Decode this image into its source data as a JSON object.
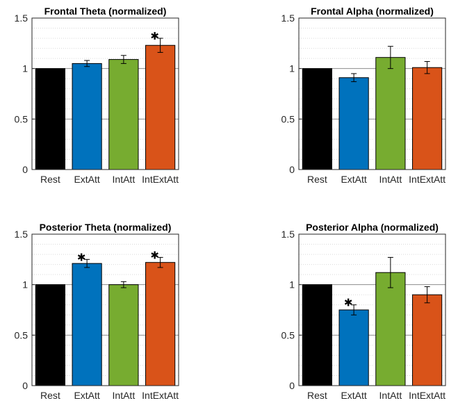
{
  "colors": {
    "axis": "#262626",
    "major_grid": "#8c8c8c",
    "minor_grid": "#d9d9d9"
  },
  "chart_data": [
    {
      "type": "bar",
      "title": "Frontal Theta (normalized)",
      "categories": [
        "Rest",
        "ExtAtt",
        "IntAtt",
        "IntExtAtt"
      ],
      "values": [
        1.0,
        1.05,
        1.09,
        1.23
      ],
      "errors": [
        0.0,
        0.03,
        0.04,
        0.07
      ],
      "significant": [
        false,
        false,
        false,
        true
      ],
      "colors": [
        "#000000",
        "#0072bd",
        "#77ac30",
        "#d95319"
      ],
      "ylim": [
        0,
        1.5
      ],
      "yticks": [
        0,
        0.5,
        1,
        1.5
      ],
      "ytick_labels": [
        "0",
        "0.5",
        "1",
        "1.5"
      ],
      "grid": true
    },
    {
      "type": "bar",
      "title": "Frontal Alpha (normalized)",
      "categories": [
        "Rest",
        "ExtAtt",
        "IntAtt",
        "IntExtAtt"
      ],
      "values": [
        1.0,
        0.91,
        1.11,
        1.01
      ],
      "errors": [
        0.0,
        0.04,
        0.11,
        0.06
      ],
      "significant": [
        false,
        false,
        false,
        false
      ],
      "colors": [
        "#000000",
        "#0072bd",
        "#77ac30",
        "#d95319"
      ],
      "ylim": [
        0,
        1.5
      ],
      "yticks": [
        0,
        0.5,
        1,
        1.5
      ],
      "ytick_labels": [
        "0",
        "0.5",
        "1",
        "1.5"
      ],
      "grid": true
    },
    {
      "type": "bar",
      "title": "Posterior Theta (normalized)",
      "categories": [
        "Rest",
        "ExtAtt",
        "IntAtt",
        "IntExtAtt"
      ],
      "values": [
        1.0,
        1.21,
        1.0,
        1.22
      ],
      "errors": [
        0.0,
        0.04,
        0.03,
        0.05
      ],
      "significant": [
        false,
        true,
        false,
        true
      ],
      "colors": [
        "#000000",
        "#0072bd",
        "#77ac30",
        "#d95319"
      ],
      "ylim": [
        0,
        1.5
      ],
      "yticks": [
        0,
        0.5,
        1,
        1.5
      ],
      "ytick_labels": [
        "0",
        "0.5",
        "1",
        "1.5"
      ],
      "grid": true
    },
    {
      "type": "bar",
      "title": "Posterior Alpha (normalized)",
      "categories": [
        "Rest",
        "ExtAtt",
        "IntAtt",
        "IntExtAtt"
      ],
      "values": [
        1.0,
        0.75,
        1.12,
        0.9
      ],
      "errors": [
        0.0,
        0.05,
        0.15,
        0.08
      ],
      "significant": [
        false,
        true,
        false,
        false
      ],
      "colors": [
        "#000000",
        "#0072bd",
        "#77ac30",
        "#d95319"
      ],
      "ylim": [
        0,
        1.5
      ],
      "yticks": [
        0,
        0.5,
        1,
        1.5
      ],
      "ytick_labels": [
        "0",
        "0.5",
        "1",
        "1.5"
      ],
      "grid": true
    }
  ]
}
